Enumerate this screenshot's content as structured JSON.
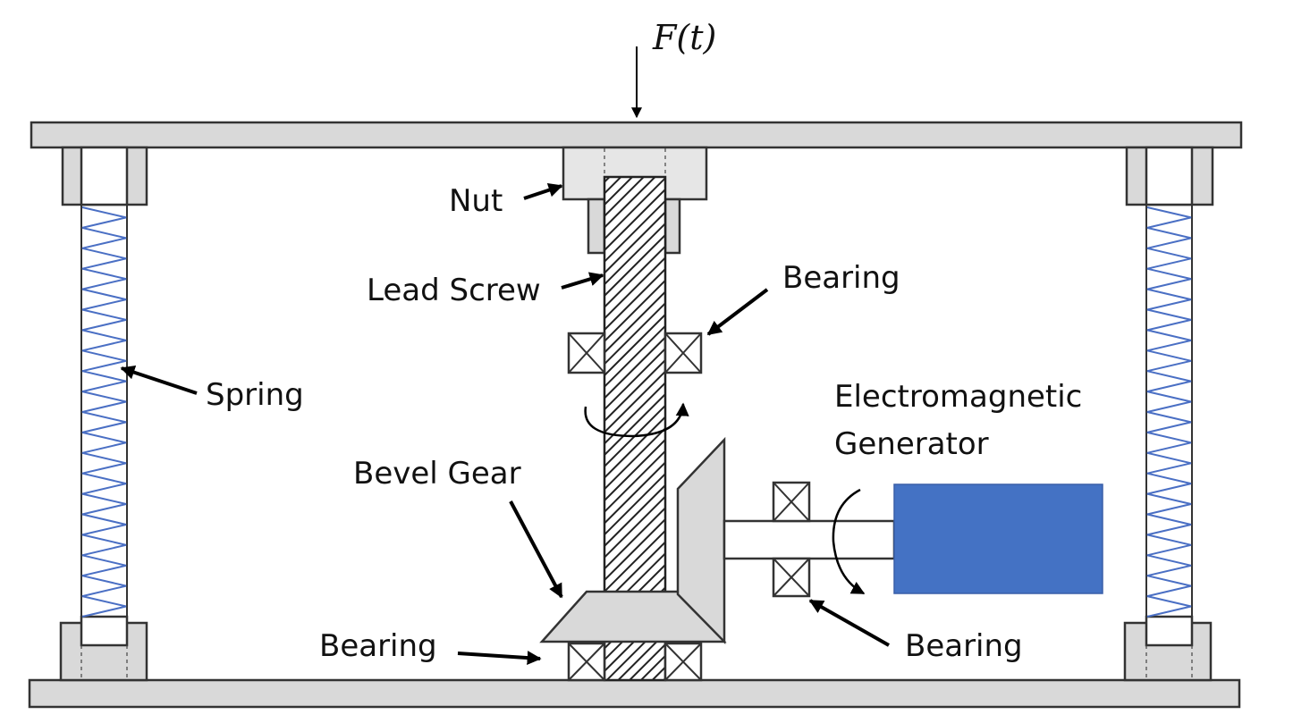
{
  "force_label": "F(t)",
  "labels": {
    "nut": "Nut",
    "lead_screw": "Lead Screw",
    "bearing_top": "Bearing",
    "spring": "Spring",
    "generator_line1": "Electromagnetic",
    "generator_line2": "Generator",
    "bevel_gear": "Bevel Gear",
    "bearing_bottom_left": "Bearing",
    "bearing_bottom_right": "Bearing"
  },
  "colors": {
    "spring": "#4a6fc4",
    "generator": "#4472c4",
    "part_fill": "#d9d9d9",
    "plate_fill": "#d9d9d9"
  }
}
